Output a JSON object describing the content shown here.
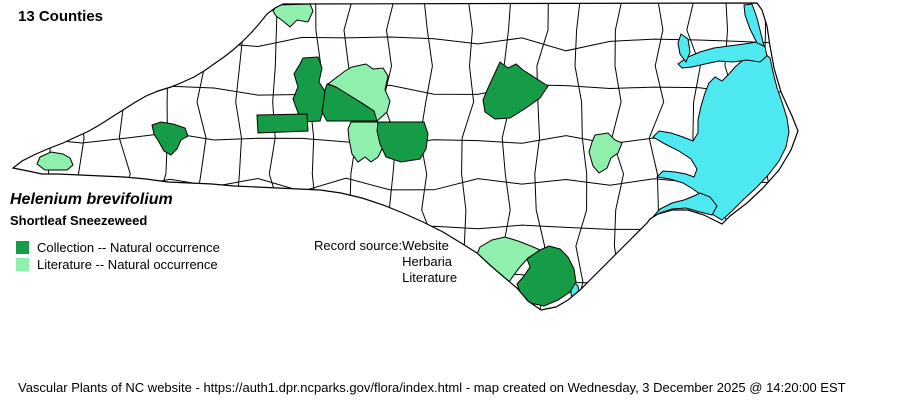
{
  "header": {
    "county_count_label": "13 Counties"
  },
  "species": {
    "scientific_name": "Helenium brevifolium",
    "common_name": "Shortleaf Sneezeweed"
  },
  "legend": {
    "items": [
      {
        "type": "collection",
        "label": "Collection -- Natural occurrence",
        "color": "#169B47"
      },
      {
        "type": "literature",
        "label": "Literature -- Natural occurrence",
        "color": "#8FF0AE"
      }
    ]
  },
  "record_source": {
    "label": "Record source:",
    "sources": [
      "Website",
      "Herbaria",
      "Literature"
    ]
  },
  "footer": {
    "text": "Vascular Plants of NC website - https://auth1.dpr.ncparks.gov/flora/index.html - map created on Wednesday, 3 December 2025 @ 14:20:00 EST"
  },
  "map": {
    "water_color": "#4EE8F1",
    "county_fill": "#FFFFFF",
    "boundary_color": "#000000",
    "highlighted_counties": [
      {
        "type": "literature"
      },
      {
        "type": "collection"
      },
      {
        "type": "collection"
      },
      {
        "type": "literature"
      },
      {
        "type": "literature"
      },
      {
        "type": "collection"
      },
      {
        "type": "collection"
      },
      {
        "type": "collection"
      },
      {
        "type": "literature"
      },
      {
        "type": "collection"
      },
      {
        "type": "literature"
      },
      {
        "type": "literature"
      },
      {
        "type": "collection"
      }
    ]
  }
}
